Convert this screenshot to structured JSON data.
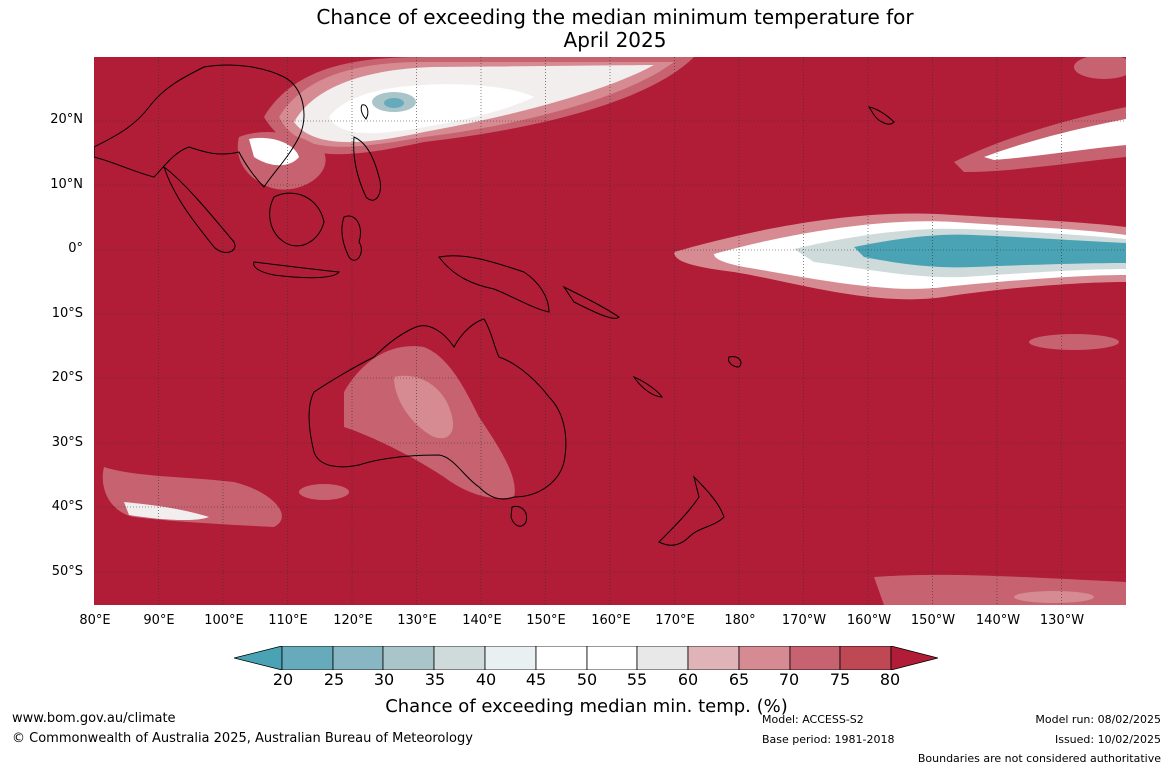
{
  "header": {
    "title_line1": "Chance of exceeding the median minimum temperature for",
    "title_line2": "April 2025"
  },
  "map": {
    "region": "Australia, Asia and the Pacific Ocean",
    "base_fill_color": "#b11c37",
    "lat_labels": [
      "20°N",
      "10°N",
      "0°",
      "10°S",
      "20°S",
      "30°S",
      "40°S",
      "50°S"
    ],
    "lon_labels": [
      "80°E",
      "90°E",
      "100°E",
      "110°E",
      "120°E",
      "130°E",
      "140°E",
      "150°E",
      "160°E",
      "170°E",
      "180°",
      "170°W",
      "160°W",
      "150°W",
      "140°W",
      "130°W"
    ]
  },
  "colorbar": {
    "ticks": [
      "20",
      "25",
      "30",
      "35",
      "40",
      "45",
      "50",
      "55",
      "60",
      "65",
      "70",
      "75",
      "80"
    ],
    "colors": [
      "#4aa3b4",
      "#66aabb",
      "#88b6c2",
      "#a9c5ca",
      "#cfdadb",
      "#e9f0f2",
      "#ffffff",
      "#ffffff",
      "#e8e8e8",
      "#dfb3b8",
      "#d68b93",
      "#c76370",
      "#bf4855",
      "#b11c37"
    ],
    "title": "Chance of exceeding median min. temp. (%)"
  },
  "footer": {
    "website": "www.bom.gov.au/climate",
    "copyright": "© Commonwealth of Australia 2025, Australian Bureau of Meteorology",
    "model": "Model: ACCESS-S2",
    "base_period": "Base period: 1981-2018",
    "model_run": "Model run: 08/02/2025",
    "issued": "Issued: 10/02/2025",
    "disclaimer": "Boundaries are not considered authoritative"
  }
}
